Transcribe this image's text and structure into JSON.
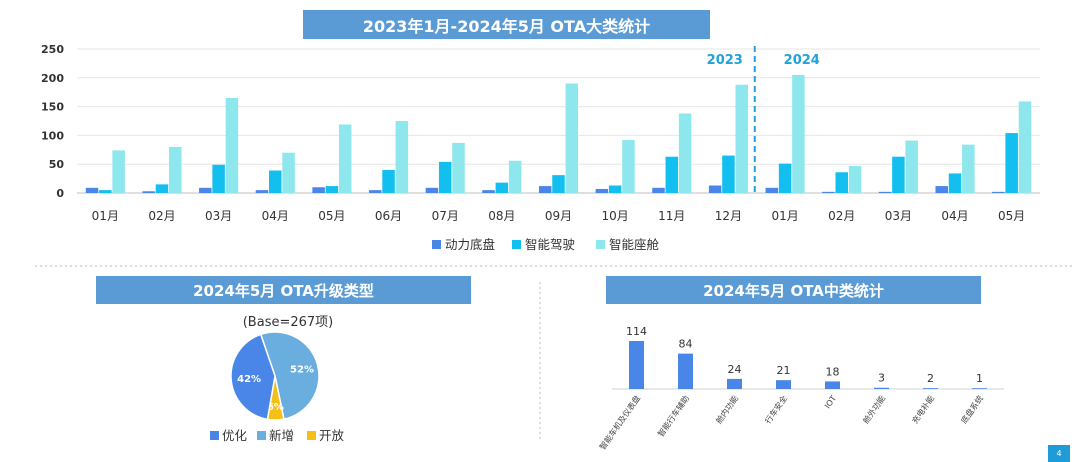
{
  "titles": {
    "top": "2023年1月-2024年5月 OTA大类统计",
    "pie": "2024年5月 OTA升级类型",
    "mid": "2024年5月 OTA中类统计"
  },
  "year_labels": [
    "2023",
    "2024"
  ],
  "pie_base": "(Base=267项)",
  "page_number": "4",
  "colors": {
    "banner": "#5b9bd5",
    "accent": "#1f9bd7"
  },
  "chart_data": [
    {
      "type": "bar",
      "title": "2023年1月-2024年5月 OTA大类统计",
      "categories": [
        "01月",
        "02月",
        "03月",
        "04月",
        "05月",
        "06月",
        "07月",
        "08月",
        "09月",
        "10月",
        "11月",
        "12月",
        "01月",
        "02月",
        "03月",
        "04月",
        "05月"
      ],
      "ylim": [
        0,
        250
      ],
      "yticks": [
        0,
        50,
        100,
        150,
        200,
        250
      ],
      "legend_position": "bottom",
      "series": [
        {
          "name": "动力底盘",
          "color": "#4a86e8",
          "values": [
            9,
            3,
            9,
            5,
            10,
            5,
            9,
            5,
            12,
            7,
            9,
            13,
            9,
            2,
            2,
            12,
            2
          ]
        },
        {
          "name": "智能驾驶",
          "color": "#12bfef",
          "values": [
            5,
            15,
            49,
            39,
            12,
            40,
            54,
            18,
            31,
            13,
            63,
            65,
            51,
            36,
            63,
            34,
            104
          ]
        },
        {
          "name": "智能座舱",
          "color": "#8ee7ec",
          "values": [
            74,
            80,
            165,
            70,
            119,
            125,
            87,
            56,
            190,
            92,
            138,
            188,
            205,
            47,
            91,
            84,
            159
          ]
        }
      ]
    },
    {
      "type": "pie",
      "title": "2024年5月 OTA升级类型",
      "legend_position": "bottom",
      "slices": [
        {
          "name": "优化",
          "value": 42,
          "label": "42%",
          "color": "#4a86e8"
        },
        {
          "name": "新增",
          "value": 52,
          "label": "52%",
          "color": "#6aaee0"
        },
        {
          "name": "开放",
          "value": 6,
          "label": "6%",
          "color": "#f4bf16"
        }
      ]
    },
    {
      "type": "bar",
      "title": "2024年5月 OTA中类统计",
      "categories": [
        "智能车机及仪表盘",
        "智能行车辅助",
        "舱内功能",
        "行车安全",
        "IOT",
        "舱外功能",
        "充电补能",
        "底盘系统"
      ],
      "values": [
        114,
        84,
        24,
        21,
        18,
        3,
        2,
        1
      ],
      "color": "#4a86e8"
    }
  ]
}
